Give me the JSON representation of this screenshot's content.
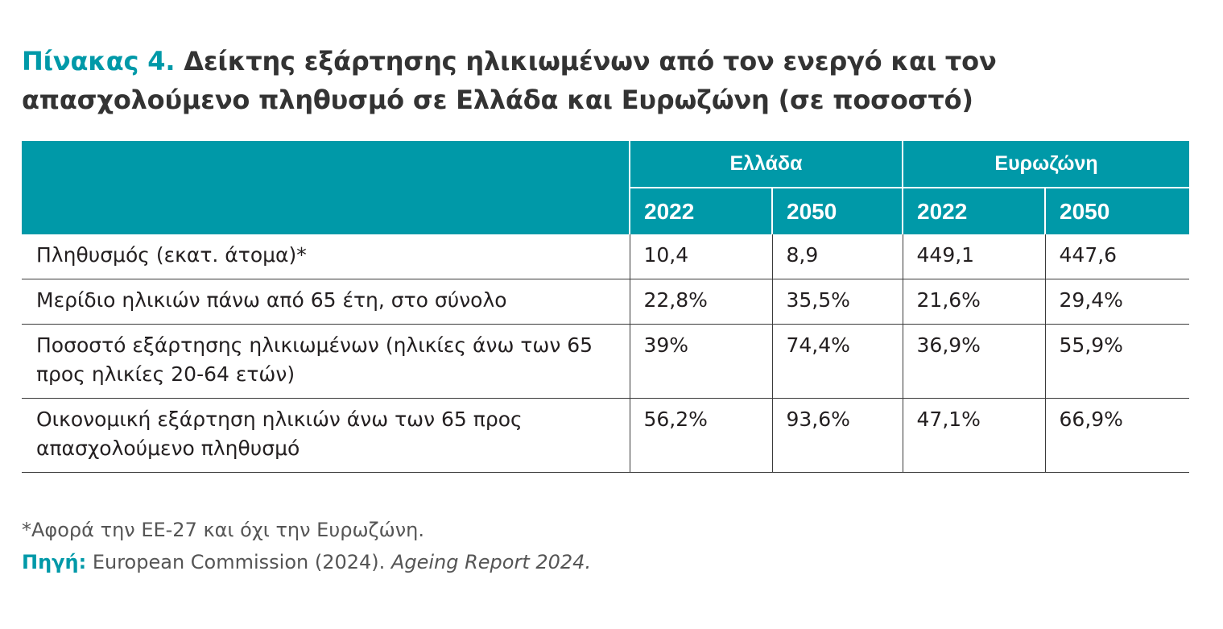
{
  "title": {
    "label": "Πίνακας 4.",
    "text": "Δείκτης εξάρτησης ηλικιωμένων από τον ενεργό και τον απασχολούμενο πληθυσμό σε Ελλάδα και Ευρωζώνη (σε ποσοστό)"
  },
  "table": {
    "groups": [
      "Ελλάδα",
      "Ευρωζώνη"
    ],
    "years": [
      "2022",
      "2050",
      "2022",
      "2050"
    ],
    "rows": [
      {
        "label": "Πληθυσμός (εκατ. άτομα)*",
        "values": [
          "10,4",
          "8,9",
          "449,1",
          "447,6"
        ]
      },
      {
        "label": "Μερίδιο ηλικιών πάνω από 65 έτη, στο σύνολο",
        "values": [
          "22,8%",
          "35,5%",
          "21,6%",
          "29,4%"
        ]
      },
      {
        "label": "Ποσοστό εξάρτησης ηλικιωμένων (ηλικίες άνω των 65 προς ηλικίες 20-64 ετών)",
        "values": [
          "39%",
          "74,4%",
          "36,9%",
          "55,9%"
        ]
      },
      {
        "label": "Οικονομική εξάρτηση ηλικιών άνω των 65 προς απασχολούμενο πληθυσμό",
        "values": [
          "56,2%",
          "93,6%",
          "47,1%",
          "66,9%"
        ]
      }
    ]
  },
  "footnote": "*Αφορά την ΕΕ-27 και όχι την Ευρωζώνη.",
  "source": {
    "label": "Πηγή:",
    "text": "European Commission (2024).",
    "title": "Ageing Report 2024."
  },
  "colors": {
    "accent": "#0099a8",
    "title_text": "#333333",
    "body_text": "#231f20",
    "rule": "#3a3a3a"
  }
}
